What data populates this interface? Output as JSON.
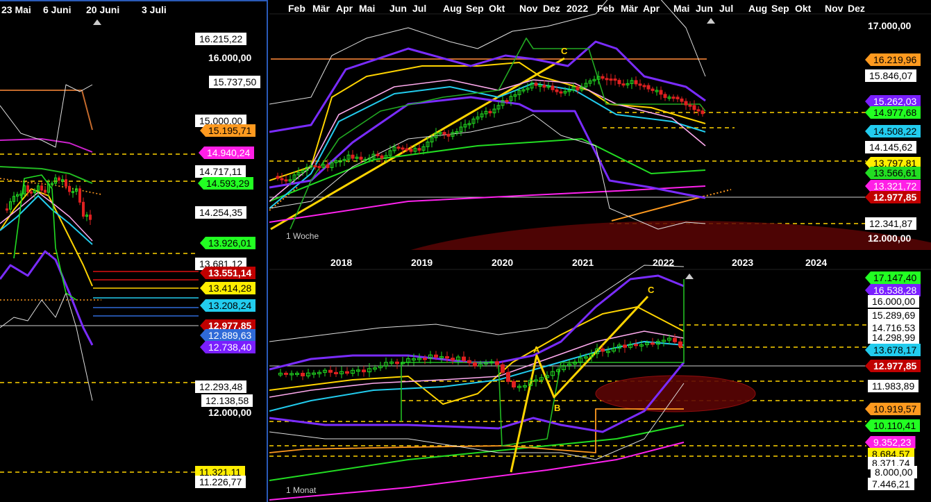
{
  "colors": {
    "white_tag": "#ffffff",
    "orange_tag": "#ff9a1f",
    "magenta_tag": "#ff1fe6",
    "green_tag": "#22ff22",
    "yellow_tag": "#ffee00",
    "cyan_tag": "#22ccee",
    "red_tag": "#c00000",
    "purple_tag": "#7a1fff",
    "mid_green_tag": "#22dd22",
    "blue_tag": "#2f6ad8"
  },
  "left_pane": {
    "x_ticks": [
      "23 Mai",
      "6 Juni",
      "20 Juni",
      "3 Juli"
    ],
    "price_tags": [
      {
        "label": "16.215,22",
        "style": "white_tag"
      },
      {
        "label": "16.000,00",
        "style": "plain"
      },
      {
        "label": "15.737,50",
        "style": "white_tag"
      },
      {
        "label": "15.000,00",
        "style": "white_tag"
      },
      {
        "label": "15.195,71",
        "style": "orange_tag"
      },
      {
        "label": "14.940,24",
        "style": "magenta_tag"
      },
      {
        "label": "14.717,11",
        "style": "white_tag"
      },
      {
        "label": "14.593,29",
        "style": "green_tag"
      },
      {
        "label": "14.254,35",
        "style": "white_tag"
      },
      {
        "label": "13.926,01",
        "style": "green_tag"
      },
      {
        "label": "13.681,12",
        "style": "white_tag"
      },
      {
        "label": "13.551,14",
        "style": "red_tag"
      },
      {
        "label": "13.414,28",
        "style": "yellow_tag"
      },
      {
        "label": "13.208,24",
        "style": "cyan_tag"
      },
      {
        "label": "12.977,85",
        "style": "red_tag"
      },
      {
        "label": "12.889,63",
        "style": "blue_tag"
      },
      {
        "label": "12.738,40",
        "style": "purple_tag"
      },
      {
        "label": "12.293,48",
        "style": "white_tag"
      },
      {
        "label": "12.138,58",
        "style": "white_tag"
      },
      {
        "label": "12.000,00",
        "style": "plain"
      },
      {
        "label": "11.321,11",
        "style": "yellow_tag"
      },
      {
        "label": "11.226,77",
        "style": "white_tag"
      }
    ]
  },
  "weekly_pane": {
    "caption": "1 Woche",
    "x_ticks": [
      "Feb",
      "Mär",
      "Apr",
      "Mai",
      "Jun",
      "Jul",
      "Aug",
      "Sep",
      "Okt",
      "Nov",
      "Dez",
      "2022",
      "Feb",
      "Mär",
      "Apr",
      "Mai",
      "Jun",
      "Jul",
      "Aug",
      "Sep",
      "Okt",
      "Nov",
      "Dez"
    ],
    "wave_label": "C",
    "price_tags": [
      {
        "label": "17.000,00",
        "style": "plain"
      },
      {
        "label": "16.219,96",
        "style": "orange_tag"
      },
      {
        "label": "15.846,07",
        "style": "white_tag"
      },
      {
        "label": "15.262,03",
        "style": "purple_tag"
      },
      {
        "label": "14.977,68",
        "style": "green_tag"
      },
      {
        "label": "14.508,22",
        "style": "cyan_tag"
      },
      {
        "label": "14.145,62",
        "style": "white_tag"
      },
      {
        "label": "13.797,81",
        "style": "yellow_tag"
      },
      {
        "label": "13.566,61",
        "style": "mid_green_tag"
      },
      {
        "label": "13.321,72",
        "style": "magenta_tag"
      },
      {
        "label": "12.977,85",
        "style": "red_tag"
      },
      {
        "label": "12.341,87",
        "style": "white_tag"
      },
      {
        "label": "12.000,00",
        "style": "plain"
      }
    ]
  },
  "monthly_pane": {
    "caption": "1 Monat",
    "x_ticks": [
      "2018",
      "2019",
      "2020",
      "2021",
      "2022",
      "2023",
      "2024"
    ],
    "wave_labels": [
      "A",
      "B",
      "C"
    ],
    "price_tags": [
      {
        "label": "17.147,40",
        "style": "green_tag"
      },
      {
        "label": "16.538,28",
        "style": "purple_tag"
      },
      {
        "label": "16.000,00",
        "style": "white_tag"
      },
      {
        "label": "15.289,69",
        "style": "white_tag"
      },
      {
        "label": "14.716,53",
        "style": "white_tag"
      },
      {
        "label": "14.298,99",
        "style": "white_tag"
      },
      {
        "label": "13.678,17",
        "style": "cyan_tag"
      },
      {
        "label": "12.977,85",
        "style": "red_tag"
      },
      {
        "label": "11.983,89",
        "style": "white_tag"
      },
      {
        "label": "10.919,57",
        "style": "orange_tag"
      },
      {
        "label": "10.110,41",
        "style": "green_tag"
      },
      {
        "label": "9.352,23",
        "style": "magenta_tag"
      },
      {
        "label": "8.684,57",
        "style": "yellow_tag"
      },
      {
        "label": "8.371,74",
        "style": "white_tag"
      },
      {
        "label": "8.000,00",
        "style": "white_tag"
      },
      {
        "label": "7.446,21",
        "style": "white_tag"
      }
    ]
  },
  "chart_data": [
    {
      "type": "line",
      "title": "",
      "timeframe": "daily",
      "x_ticks": [
        "23 Mai",
        "6 Juni",
        "20 Juni",
        "3 Juli"
      ],
      "ylim": [
        11000,
        16500
      ],
      "last_close": 12977.85,
      "levels": [
        16215.22,
        15737.5,
        15195.71,
        14940.24,
        14717.11,
        14593.29,
        14254.35,
        13926.01,
        13681.12,
        13551.14,
        13414.28,
        13208.24,
        12977.85,
        12889.63,
        12738.4,
        12293.48,
        12138.58,
        11321.11,
        11226.77
      ]
    },
    {
      "type": "line",
      "title": "",
      "timeframe": "1 Woche",
      "x_ticks": [
        "Feb",
        "Mär",
        "Apr",
        "Mai",
        "Jun",
        "Jul",
        "Aug",
        "Sep",
        "Okt",
        "Nov",
        "Dez",
        "2022",
        "Feb",
        "Mär",
        "Apr",
        "Mai",
        "Jun",
        "Jul",
        "Aug",
        "Sep",
        "Okt",
        "Nov",
        "Dez"
      ],
      "ylim": [
        11900,
        17300
      ],
      "last_close": 12977.85,
      "levels": [
        16219.96,
        15846.07,
        15262.03,
        14977.68,
        14508.22,
        14145.62,
        13797.81,
        13566.61,
        13321.72,
        12977.85,
        12341.87
      ]
    },
    {
      "type": "line",
      "title": "",
      "timeframe": "1 Monat",
      "x_ticks": [
        "2018",
        "2019",
        "2020",
        "2021",
        "2022",
        "2023",
        "2024"
      ],
      "ylim": [
        7000,
        17500
      ],
      "last_close": 12977.85,
      "levels": [
        17147.4,
        16538.28,
        15289.69,
        14716.53,
        14298.99,
        13678.17,
        12977.85,
        11983.89,
        10919.57,
        10110.41,
        9352.23,
        8684.57,
        8371.74,
        7446.21
      ]
    }
  ]
}
